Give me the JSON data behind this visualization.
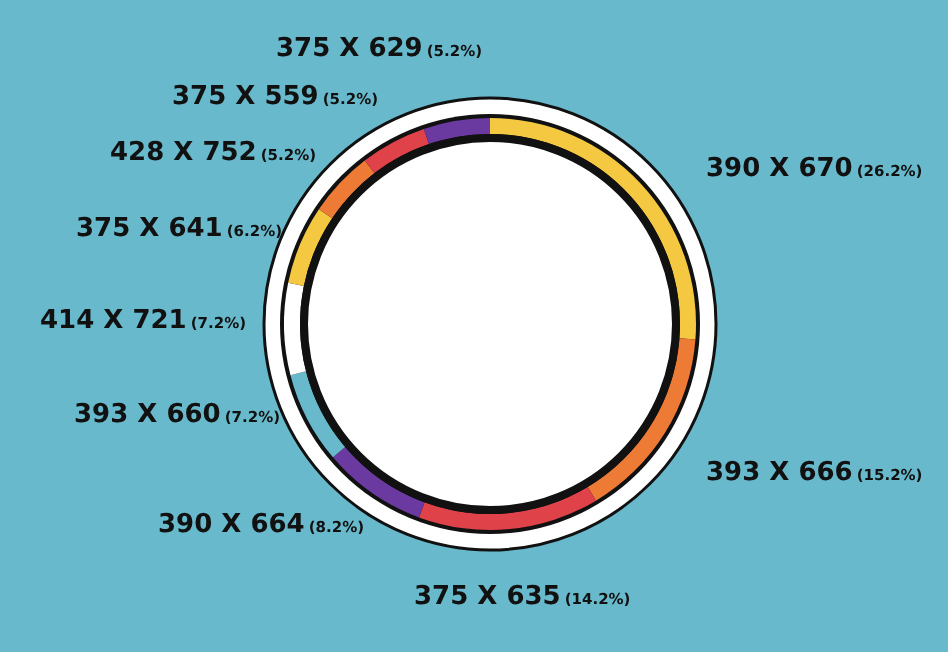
{
  "chart_data": {
    "type": "donut",
    "categories": [
      "390 X 670",
      "393 X 666",
      "375 X 635",
      "390 X 664",
      "393 X 660",
      "414 X 721",
      "375 X 641",
      "428 X 752",
      "375 X 559",
      "375 X 629"
    ],
    "values": [
      26.2,
      15.2,
      14.2,
      8.2,
      7.2,
      7.2,
      6.2,
      5.2,
      5.2,
      5.2
    ],
    "value_labels": [
      "(26.2%)",
      "(15.2%)",
      "(14.2%)",
      "(8.2%)",
      "(7.2%)",
      "(7.2%)",
      "(6.2%)",
      "(5.2%)",
      "(5.2%)",
      "(5.2%)"
    ],
    "colors": [
      "#f5c842",
      "#ee7b35",
      "#e0424a",
      "#6a3aa0",
      "#67b9cb",
      "#ffffff",
      "#f5c842",
      "#ee7b35",
      "#e0424a",
      "#6a3aa0"
    ]
  }
}
